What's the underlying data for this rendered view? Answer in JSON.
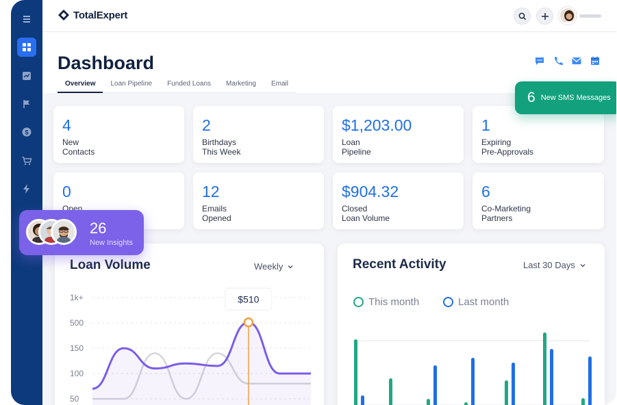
{
  "app": {
    "brand": "TotalExpert"
  },
  "sidebar": {
    "items": [
      {
        "icon": "menu-icon"
      },
      {
        "icon": "dashboard-icon",
        "active": true
      },
      {
        "icon": "chart-icon"
      },
      {
        "icon": "flag-icon"
      },
      {
        "icon": "dollar-icon"
      },
      {
        "icon": "cart-icon"
      },
      {
        "icon": "bolt-icon"
      }
    ]
  },
  "header": {
    "title": "Dashboard",
    "tabs": [
      {
        "label": "Overview",
        "active": true
      },
      {
        "label": "Loan Pipeline"
      },
      {
        "label": "Funded Loans"
      },
      {
        "label": "Marketing"
      },
      {
        "label": "Email"
      }
    ]
  },
  "stats": [
    {
      "value": "4",
      "label1": "New",
      "label2": "Contacts"
    },
    {
      "value": "2",
      "label1": "Birthdays",
      "label2": "This Week"
    },
    {
      "value": "$1,203.00",
      "label1": "Loan",
      "label2": "Pipeline"
    },
    {
      "value": "1",
      "label1": "Expiring",
      "label2": "Pre-Approvals"
    },
    {
      "value": "0",
      "label1": "Open",
      "label2": ""
    },
    {
      "value": "12",
      "label1": "Emails",
      "label2": "Opened"
    },
    {
      "value": "$904.32",
      "label1": "Closed",
      "label2": "Loan Volume"
    },
    {
      "value": "6",
      "label1": "Co-Marketing",
      "label2": "Partners"
    }
  ],
  "sms": {
    "count": "6",
    "label": "New SMS Messages"
  },
  "insights": {
    "count": "26",
    "label": "New Insights"
  },
  "loan_volume": {
    "title": "Loan Volume",
    "period": "Weekly",
    "tooltip": "$510"
  },
  "recent_activity": {
    "title": "Recent Activity",
    "period": "Last 30 Days",
    "legend": [
      "This month",
      "Last month"
    ]
  },
  "colors": {
    "accent": "#1f6fe5",
    "sidebar": "#0d3a7c",
    "sms": "#13a07d",
    "insights": "#7b62e8",
    "this_month": "#1fa883",
    "last_month": "#1f6fe5",
    "line": "#7b5ce8",
    "marker": "#f0a040"
  },
  "chart_data": [
    {
      "type": "line",
      "title": "Loan Volume",
      "y_tick_labels": [
        "1k+",
        "500",
        "150",
        "100",
        "50"
      ],
      "grid": true,
      "series": [
        {
          "values": [
            70,
            150,
            110,
            120,
            115,
            510,
            100,
            100
          ]
        },
        {
          "values": [
            50,
            50,
            140,
            50,
            140,
            80,
            80,
            80
          ]
        }
      ],
      "highlight": {
        "index": 5,
        "label": "$510"
      }
    },
    {
      "type": "bar",
      "title": "Recent Activity",
      "legend": "top-left",
      "series": [
        {
          "name": "This month",
          "values": [
            100,
            43,
            13,
            8,
            40,
            110,
            14
          ]
        },
        {
          "name": "Last month",
          "values": [
            18,
            0,
            62,
            73,
            66,
            86,
            75
          ]
        }
      ]
    }
  ]
}
